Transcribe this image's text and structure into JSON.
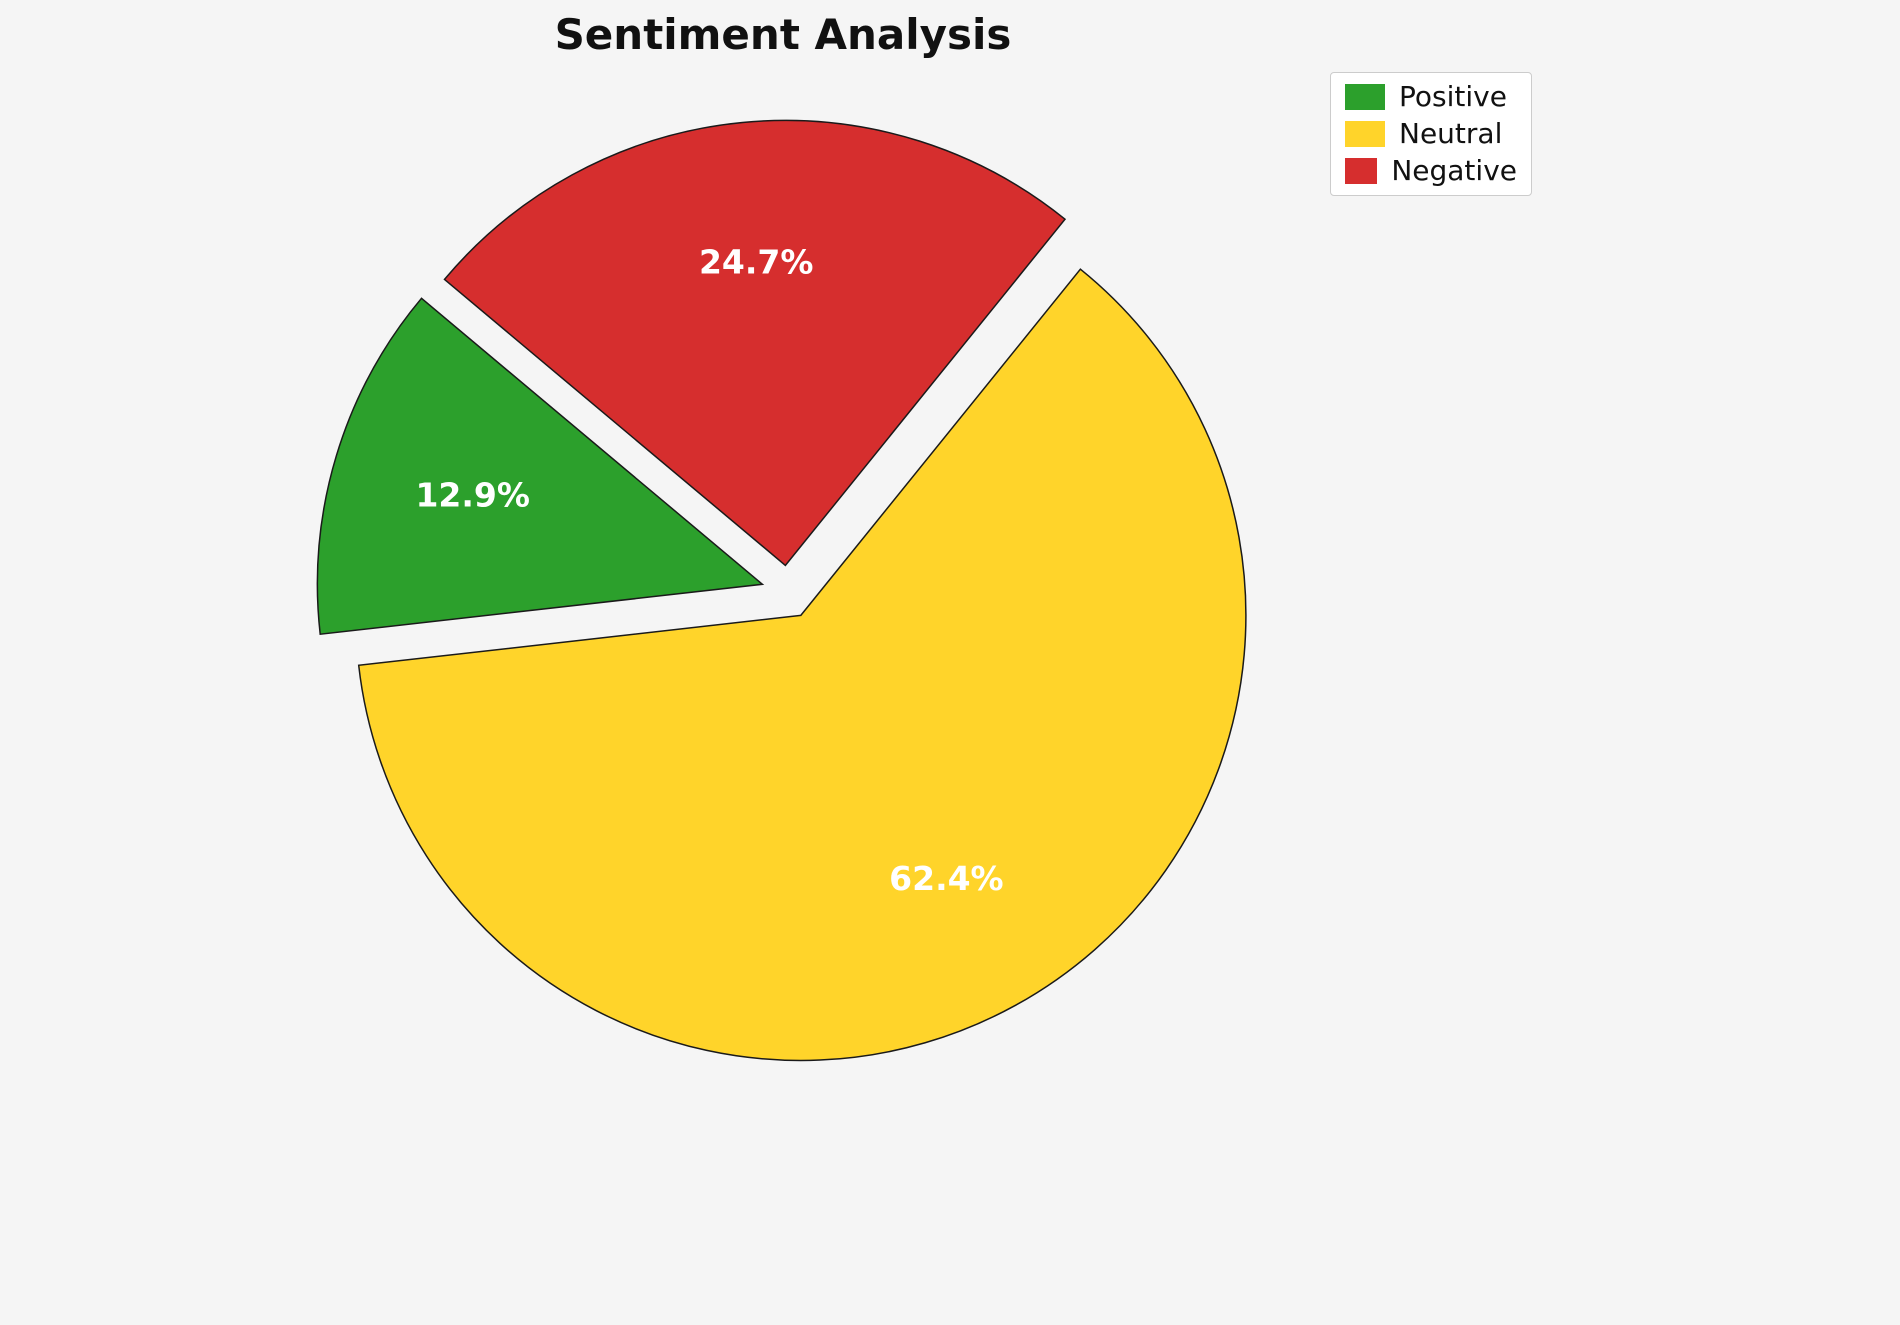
{
  "page": {
    "background_color": "#f5f5f5"
  },
  "chart_data": {
    "type": "pie",
    "title": "Sentiment Analysis",
    "categories": [
      "Positive",
      "Neutral",
      "Negative"
    ],
    "values": [
      12.9,
      62.4,
      24.7
    ],
    "labels": [
      "12.9%",
      "62.4%",
      "24.7%"
    ],
    "colors": [
      "#2ca02c",
      "#ffd42a",
      "#d62e2e"
    ],
    "label_color": "#ffffff",
    "edge_color": "#1a1a1a",
    "startangle": 140,
    "explode": [
      0.06,
      0.06,
      0.06
    ],
    "legend": {
      "position": "upper right",
      "entries": [
        "Positive",
        "Neutral",
        "Negative"
      ]
    }
  }
}
